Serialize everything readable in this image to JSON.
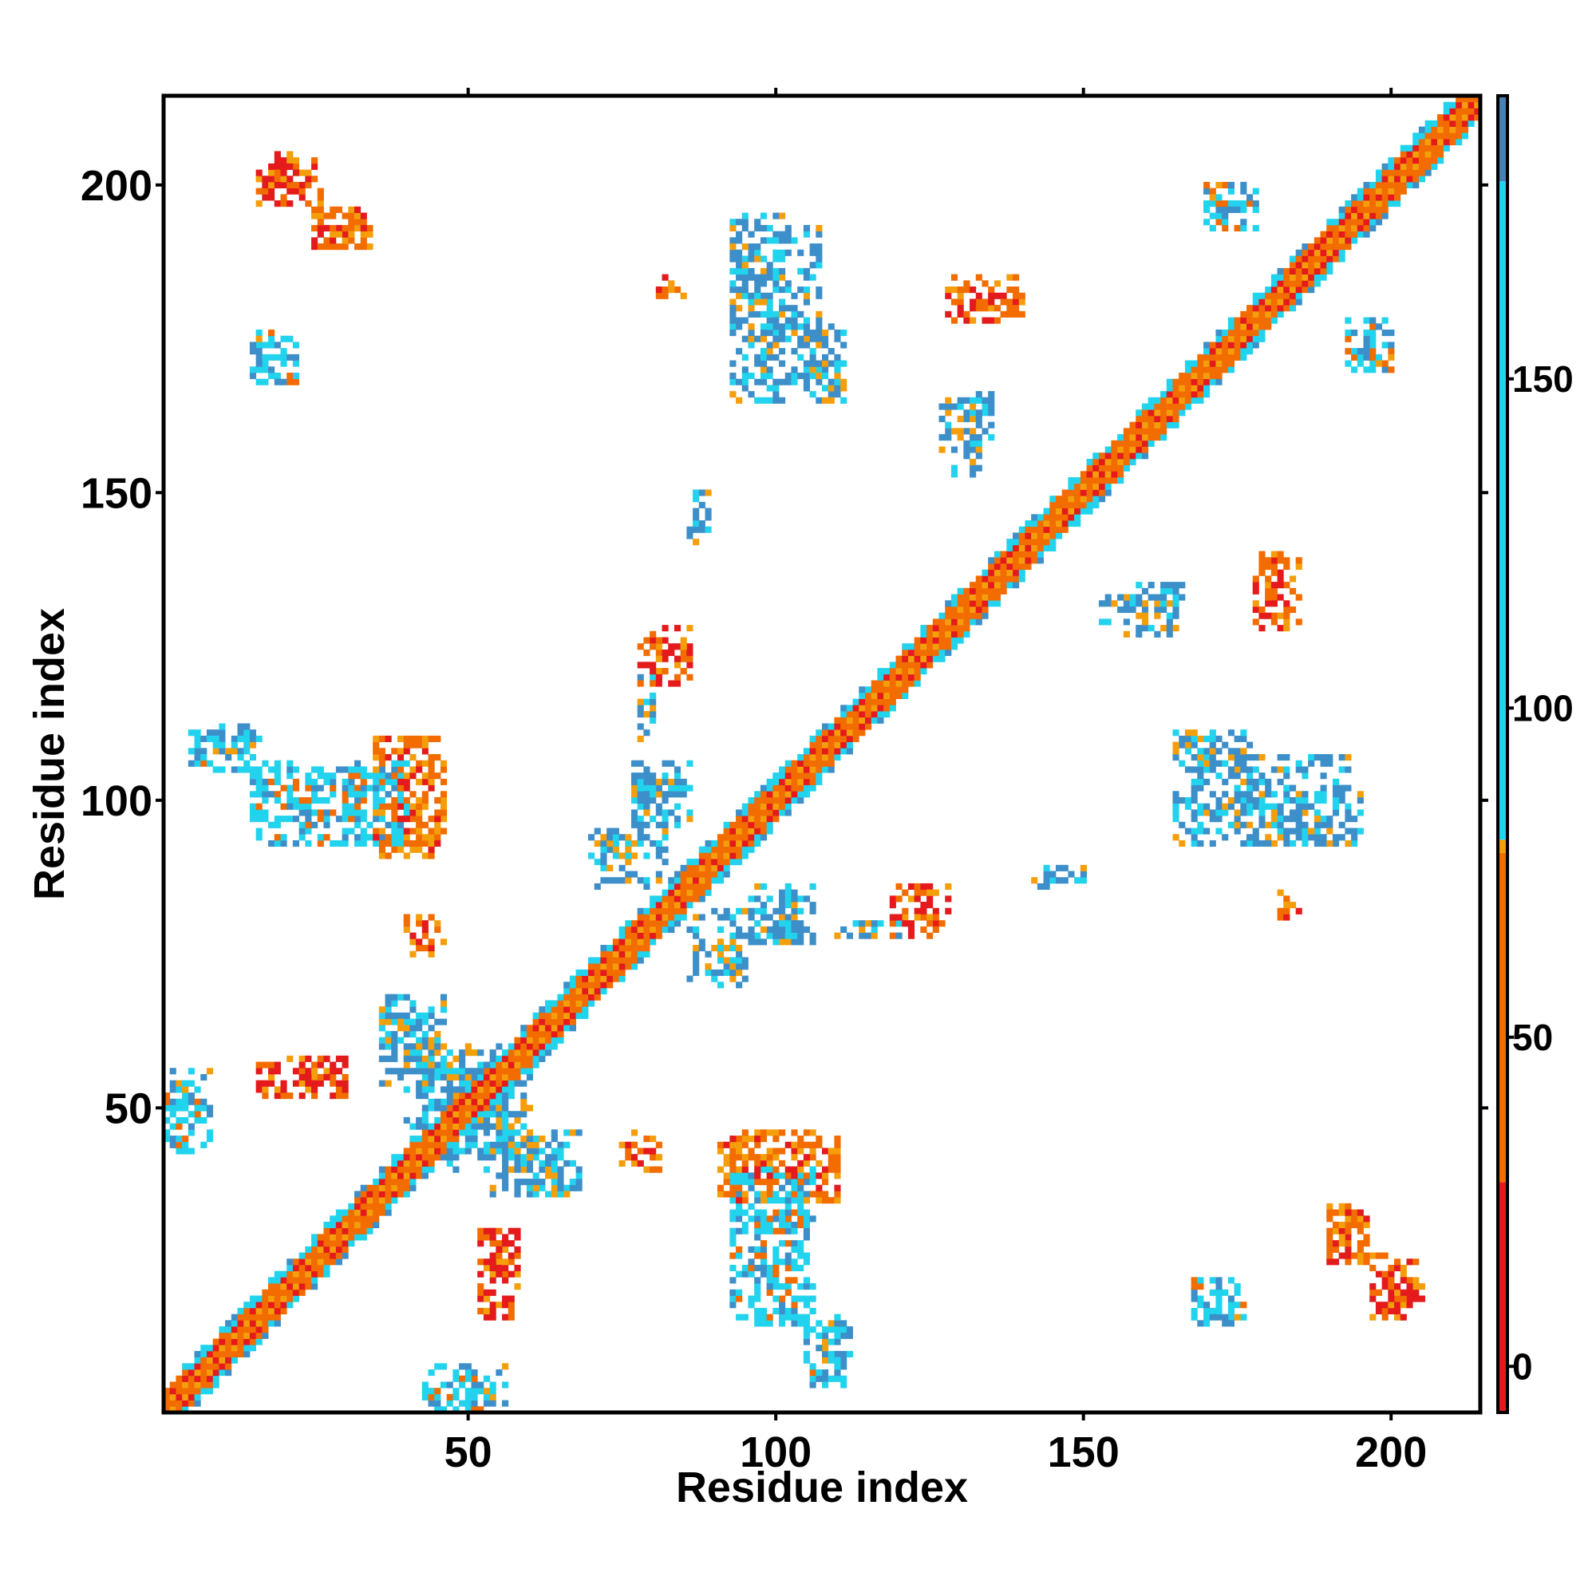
{
  "chart_data": {
    "type": "heatmap",
    "title": "",
    "xlabel": "Residue index",
    "ylabel": "Residue index",
    "xlim": [
      1,
      214
    ],
    "ylim": [
      1,
      214
    ],
    "x_ticks": [
      50,
      100,
      150,
      200
    ],
    "y_ticks": [
      50,
      100,
      150,
      200
    ],
    "colorbar": {
      "ticks": [
        0,
        50,
        100,
        150
      ],
      "range": [
        -7,
        193
      ],
      "bins": [
        {
          "from": -7,
          "to": 28,
          "color": "#e41a1c"
        },
        {
          "from": 28,
          "to": 78,
          "color": "#f26c00"
        },
        {
          "from": 78,
          "to": 80,
          "color": "#f59e0b"
        },
        {
          "from": 80,
          "to": 180,
          "color": "#22d3ee"
        },
        {
          "from": 180,
          "to": 193,
          "color": "#4682b4"
        }
      ],
      "top_white_from": 180,
      "placement": "right"
    },
    "contact_categories": {
      "red": "#e41a1c",
      "orange": "#f26c00",
      "amber": "#f59e0b",
      "cyan": "#22d3ee",
      "steel": "#3d8fc9"
    },
    "diagonal_band": {
      "from": 1,
      "to": 214,
      "half_width": 4
    },
    "clusters": [
      {
        "x": [
          1,
          8
        ],
        "y": [
          43,
          52
        ],
        "dominant": "cyan"
      },
      {
        "x": [
          16,
          30
        ],
        "y": [
          52,
          58
        ],
        "dominant": "red"
      },
      {
        "x": [
          36,
          45
        ],
        "y": [
          54,
          66
        ],
        "dominant": "steel"
      },
      {
        "x": [
          46,
          60
        ],
        "y": [
          40,
          58
        ],
        "dominant": "steel"
      },
      {
        "x": [
          57,
          68
        ],
        "y": [
          36,
          46
        ],
        "dominant": "steel"
      },
      {
        "x": [
          47,
          56
        ],
        "y": [
          2,
          8
        ],
        "dominant": "steel"
      },
      {
        "x": [
          54,
          57
        ],
        "y": [
          22,
          30
        ],
        "dominant": "red"
      },
      {
        "x": [
          71,
          82
        ],
        "y": [
          86,
          93
        ],
        "dominant": "steel"
      },
      {
        "x": [
          77,
          86
        ],
        "y": [
          96,
          106
        ],
        "dominant": "steel"
      },
      {
        "x": [
          87,
          95
        ],
        "y": [
          70,
          76
        ],
        "dominant": "steel"
      },
      {
        "x": [
          94,
          104
        ],
        "y": [
          78,
          84
        ],
        "dominant": "steel"
      },
      {
        "x": [
          80,
          86
        ],
        "y": [
          121,
          128
        ],
        "dominant": "red"
      },
      {
        "x": [
          78,
          80
        ],
        "y": [
          110,
          115
        ],
        "dominant": "steel"
      },
      {
        "x": [
          6,
          16
        ],
        "y": [
          108,
          111
        ],
        "dominant": "steel"
      },
      {
        "x": [
          16,
          40
        ],
        "y": [
          93,
          106
        ],
        "dominant": "cyan"
      },
      {
        "x": [
          38,
          46
        ],
        "y": [
          94,
          106
        ],
        "dominant": "orange"
      },
      {
        "x": [
          42,
          46
        ],
        "y": [
          76,
          80
        ],
        "dominant": "orange"
      },
      {
        "x": [
          16,
          26
        ],
        "y": [
          197,
          204
        ],
        "dominant": "red"
      },
      {
        "x": [
          25,
          34
        ],
        "y": [
          190,
          195
        ],
        "dominant": "orange"
      },
      {
        "x": [
          16,
          22
        ],
        "y": [
          168,
          176
        ],
        "dominant": "cyan"
      },
      {
        "x": [
          87,
          89
        ],
        "y": [
          142,
          150
        ],
        "dominant": "steel"
      },
      {
        "x": [
          93,
          107
        ],
        "y": [
          175,
          193
        ],
        "dominant": "steel"
      },
      {
        "x": [
          107,
          111
        ],
        "y": [
          166,
          172
        ],
        "dominant": "steel"
      },
      {
        "x": [
          83,
          85
        ],
        "y": [
          182,
          185
        ],
        "dominant": "orange"
      },
      {
        "x": [
          113,
          120
        ],
        "y": [
          78,
          80
        ],
        "dominant": "steel"
      },
      {
        "x": [
          119,
          126
        ],
        "y": [
          78,
          86
        ],
        "dominant": "red"
      },
      {
        "x": [
          131,
          135
        ],
        "y": [
          157,
          166
        ],
        "dominant": "steel"
      },
      {
        "x": [
          129,
          139
        ],
        "y": [
          180,
          185
        ],
        "dominant": "orange"
      },
      {
        "x": [
          141,
          150
        ],
        "y": [
          86,
          87
        ],
        "dominant": "steel"
      },
      {
        "x": [
          165,
          177
        ],
        "y": [
          93,
          111
        ],
        "dominant": "steel"
      },
      {
        "x": [
          177,
          195
        ],
        "y": [
          93,
          101
        ],
        "dominant": "steel"
      },
      {
        "x": [
          153,
          165
        ],
        "y": [
          127,
          133
        ],
        "dominant": "steel"
      },
      {
        "x": [
          178,
          183
        ],
        "y": [
          128,
          140
        ],
        "dominant": "orange"
      },
      {
        "x": [
          182,
          185
        ],
        "y": [
          81,
          84
        ],
        "dominant": "red"
      },
      {
        "x": [
          170,
          178
        ],
        "y": [
          193,
          200
        ],
        "dominant": "cyan"
      },
      {
        "x": [
          196,
          200
        ],
        "y": [
          169,
          176
        ],
        "dominant": "steel"
      },
      {
        "x": [
          91,
          110
        ],
        "y": [
          35,
          45
        ],
        "dominant": "orange"
      },
      {
        "x": [
          97,
          105
        ],
        "y": [
          15,
          33
        ],
        "dominant": "cyan"
      },
      {
        "x": [
          105,
          112
        ],
        "y": [
          5,
          15
        ],
        "dominant": "cyan"
      },
      {
        "x": [
          75,
          81
        ],
        "y": [
          40,
          44
        ],
        "dominant": "orange"
      },
      {
        "x": [
          168,
          175
        ],
        "y": [
          15,
          20
        ],
        "dominant": "steel"
      },
      {
        "x": [
          190,
          196
        ],
        "y": [
          25,
          33
        ],
        "dominant": "orange"
      },
      {
        "x": [
          199,
          205
        ],
        "y": [
          18,
          24
        ],
        "dominant": "red"
      }
    ]
  }
}
